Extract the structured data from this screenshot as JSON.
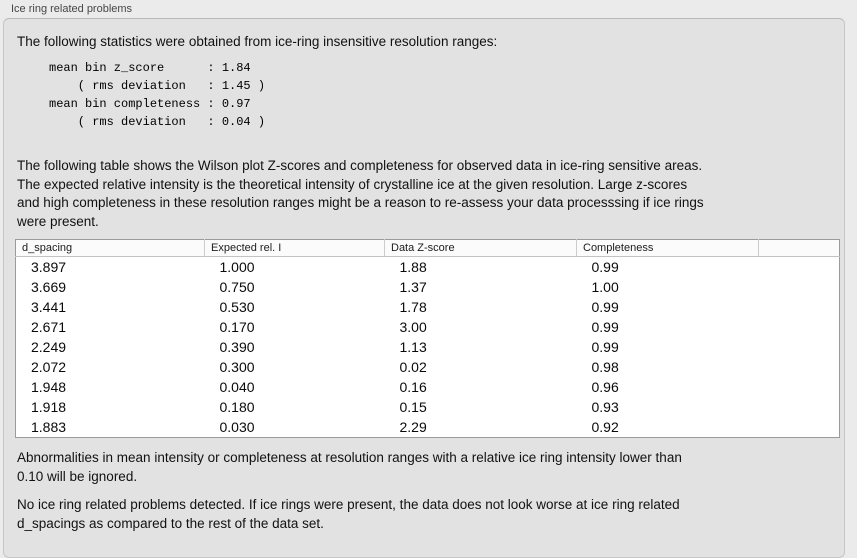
{
  "panel": {
    "title": "Ice ring related problems"
  },
  "intro_text": "The following statistics were obtained from ice-ring insensitive resolution ranges:",
  "stats_block": "mean bin z_score      : 1.84\n    ( rms deviation   : 1.45 )\nmean bin completeness : 0.97\n    ( rms deviation   : 0.04 )",
  "description": {
    "lines": [
      "The following table shows the Wilson plot Z-scores and completeness for observed data in ice-ring sensitive areas.",
      "The expected relative intensity is the theoretical intensity of crystalline ice at the given resolution. Large z-scores",
      "and high completeness in these resolution ranges might be a reason to re-assess your data processsing if ice rings",
      "were present."
    ]
  },
  "table": {
    "headers": [
      "d_spacing",
      "Expected rel. I",
      "Data Z-score",
      "Completeness",
      ""
    ],
    "rows": [
      [
        "3.897",
        "1.000",
        "1.88",
        "0.99",
        ""
      ],
      [
        "3.669",
        "0.750",
        "1.37",
        "1.00",
        ""
      ],
      [
        "3.441",
        "0.530",
        "1.78",
        "0.99",
        ""
      ],
      [
        "2.671",
        "0.170",
        "3.00",
        "0.99",
        ""
      ],
      [
        "2.249",
        "0.390",
        "1.13",
        "0.99",
        ""
      ],
      [
        "2.072",
        "0.300",
        "0.02",
        "0.98",
        ""
      ],
      [
        "1.948",
        "0.040",
        "0.16",
        "0.96",
        ""
      ],
      [
        "1.918",
        "0.180",
        "0.15",
        "0.93",
        ""
      ],
      [
        "1.883",
        "0.030",
        "2.29",
        "0.92",
        ""
      ]
    ]
  },
  "footnote": {
    "lines": [
      "Abnormalities in mean intensity or completeness at resolution ranges with a relative ice ring intensity lower than",
      "0.10 will be ignored."
    ]
  },
  "conclusion": {
    "lines": [
      "No ice ring related problems detected. If ice rings were present, the data does not look worse at ice ring related",
      "d_spacings as compared to the rest of the data set."
    ]
  },
  "colors": {
    "outer_background": "#ebebeb",
    "box_background": "#e2e2e2",
    "box_border": "#c6c6c6",
    "table_border": "#9b9b9b",
    "text": "#111111"
  }
}
